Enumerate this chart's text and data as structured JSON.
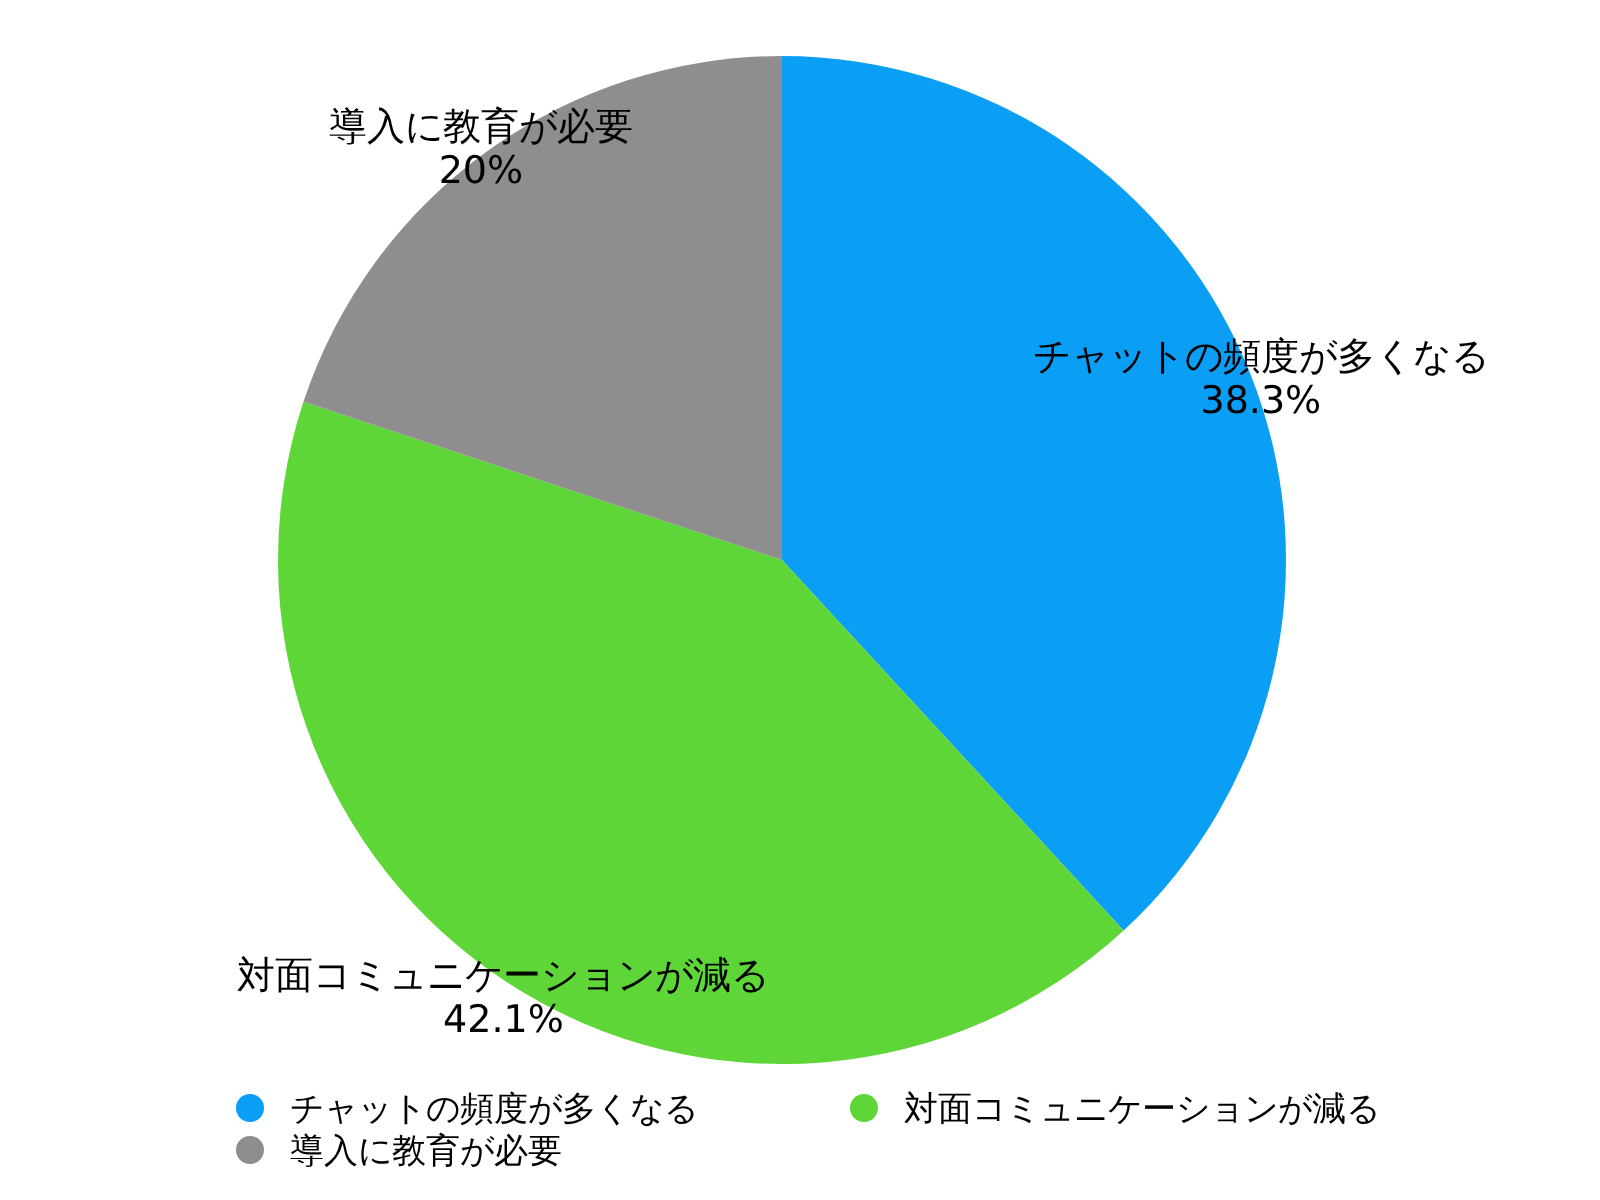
{
  "chart_data": {
    "type": "pie",
    "categories": [
      "チャットの頻度が多くなる",
      "対面コミュニケーションが減る",
      "導入に教育が必要"
    ],
    "values": [
      38.3,
      42.1,
      20
    ],
    "value_labels": [
      "38.3%",
      "42.1%",
      "20%"
    ],
    "colors": [
      "#0a9ef5",
      "#5fd638",
      "#8e8e8e"
    ],
    "legend": "bottom"
  }
}
